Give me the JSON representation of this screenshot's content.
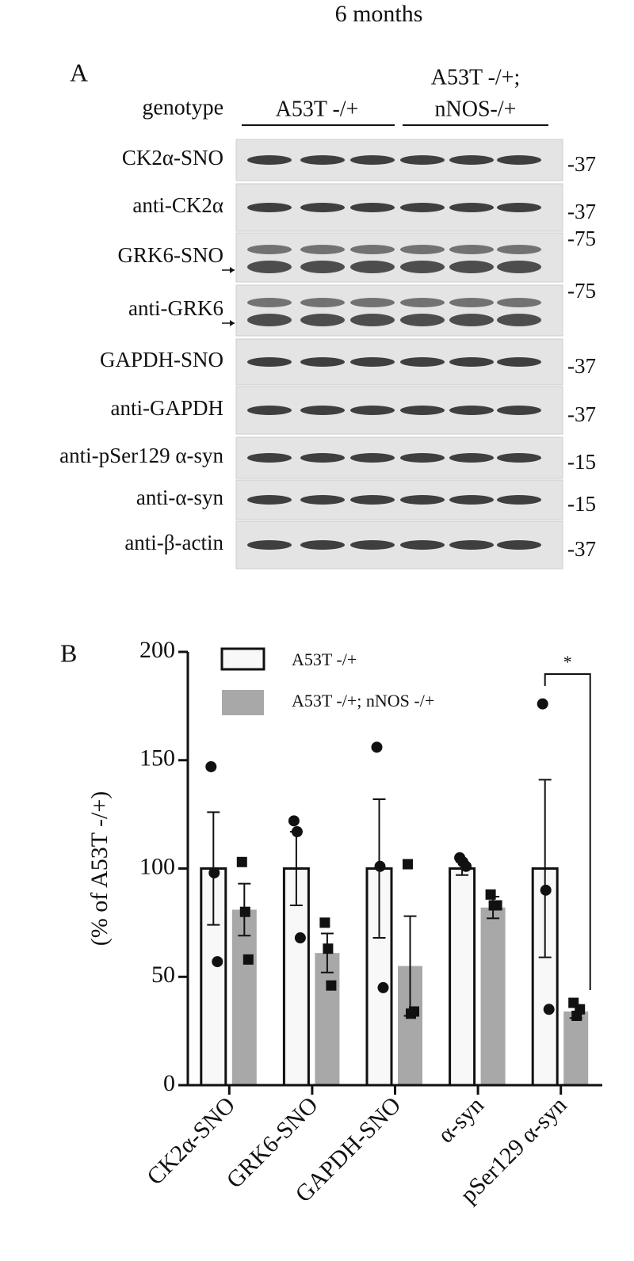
{
  "title": "6 months",
  "blot": {
    "label": "A",
    "genotype_label": "genotype",
    "groups": [
      {
        "lines": [
          "A53T -/+"
        ]
      },
      {
        "lines": [
          "A53T -/+;",
          "nNOS-/+"
        ]
      }
    ],
    "rows": [
      {
        "label": "CK2α-SNO",
        "marker": "-37"
      },
      {
        "label": "anti-CK2α",
        "marker": "-37"
      },
      {
        "label": "GRK6-SNO",
        "marker": "-75"
      },
      {
        "label": "anti-GRK6",
        "marker": "-75"
      },
      {
        "label": "GAPDH-SNO",
        "marker": "-37"
      },
      {
        "label": "anti-GAPDH",
        "marker": "-37"
      },
      {
        "label": "anti-pSer129 α-syn",
        "marker": "-15"
      },
      {
        "label": "anti-α-syn",
        "marker": "-15"
      },
      {
        "label": "anti-β-actin",
        "marker": "-37"
      }
    ]
  },
  "chart_data": {
    "type": "bar",
    "panel_label": "B",
    "y_label": "(% of A53T -/+)",
    "categories": [
      "CK2α-SNO",
      "GRK6-SNO",
      "GAPDH-SNO",
      "α-syn",
      "pSer129 α-syn"
    ],
    "series": [
      {
        "name": "A53T -/+",
        "color": "#f8f8f8",
        "values": [
          100,
          100,
          100,
          100,
          100
        ],
        "errors": [
          26,
          17,
          32,
          3,
          41
        ],
        "points": [
          [
            147,
            98,
            57
          ],
          [
            122,
            117,
            68
          ],
          [
            156,
            101,
            45
          ],
          [
            105,
            103,
            101
          ],
          [
            176,
            90,
            35
          ]
        ]
      },
      {
        "name": "A53T -/+; nNOS -/+",
        "color": "#a8a8a8",
        "values": [
          81,
          61,
          55,
          82,
          34
        ],
        "errors": [
          12,
          9,
          23,
          5,
          3
        ],
        "points": [
          [
            103,
            80,
            58
          ],
          [
            75,
            63,
            46
          ],
          [
            102,
            33,
            34
          ],
          [
            88,
            83,
            83
          ],
          [
            38,
            32,
            35
          ]
        ]
      }
    ],
    "ylim": [
      0,
      200
    ],
    "yticks": [
      0,
      50,
      100,
      150,
      200
    ],
    "legend": "upper left",
    "significance": "*"
  }
}
